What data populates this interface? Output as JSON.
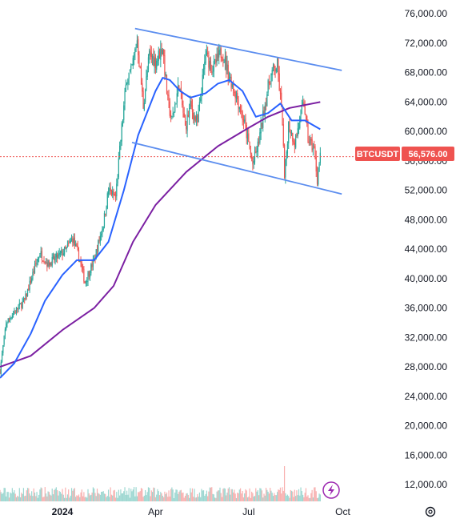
{
  "chart_data": {
    "type": "candlestick",
    "symbol": "BTCUSDT",
    "last_price": 56576,
    "last_price_label": "56,576.00",
    "y_axis": {
      "min": 9500,
      "max": 77000,
      "tick_values": [
        12000,
        16000,
        20000,
        24000,
        28000,
        32000,
        36000,
        40000,
        44000,
        48000,
        52000,
        56000,
        60000,
        64000,
        68000,
        72000,
        76000
      ],
      "tick_labels": [
        "12,000.00",
        "16,000.00",
        "20,000.00",
        "24,000.00",
        "28,000.00",
        "32,000.00",
        "36,000.00",
        "40,000.00",
        "44,000.00",
        "48,000.00",
        "52,000.00",
        "56,000.00",
        "60,000.00",
        "64,000.00",
        "68,000.00",
        "72,000.00",
        "76,000.00"
      ]
    },
    "x_axis": {
      "start": "2023-11-01",
      "end": "2024-10-10",
      "ticks": [
        {
          "date": "2024-01-01",
          "label": "2024",
          "bold": true
        },
        {
          "date": "2024-04-01",
          "label": "Apr",
          "bold": false
        },
        {
          "date": "2024-07-01",
          "label": "Jul",
          "bold": false
        },
        {
          "date": "2024-10-01",
          "label": "Oct",
          "bold": false
        }
      ]
    },
    "price_path": [
      [
        "2023-11-01",
        27500
      ],
      [
        "2023-11-07",
        34000
      ],
      [
        "2023-11-15",
        35500
      ],
      [
        "2023-11-25",
        37000
      ],
      [
        "2023-12-05",
        41500
      ],
      [
        "2023-12-10",
        43500
      ],
      [
        "2023-12-18",
        42000
      ],
      [
        "2023-12-28",
        43000
      ],
      [
        "2024-01-05",
        44000
      ],
      [
        "2024-01-11",
        45500
      ],
      [
        "2024-01-18",
        42500
      ],
      [
        "2024-01-23",
        39500
      ],
      [
        "2024-02-01",
        42500
      ],
      [
        "2024-02-10",
        47500
      ],
      [
        "2024-02-15",
        52000
      ],
      [
        "2024-02-22",
        51000
      ],
      [
        "2024-02-28",
        60500
      ],
      [
        "2024-03-04",
        67500
      ],
      [
        "2024-03-08",
        68000
      ],
      [
        "2024-03-14",
        72500
      ],
      [
        "2024-03-20",
        63500
      ],
      [
        "2024-03-26",
        70500
      ],
      [
        "2024-04-01",
        69500
      ],
      [
        "2024-04-08",
        71500
      ],
      [
        "2024-04-13",
        64000
      ],
      [
        "2024-04-17",
        61500
      ],
      [
        "2024-04-24",
        66500
      ],
      [
        "2024-04-30",
        60500
      ],
      [
        "2024-05-05",
        63500
      ],
      [
        "2024-05-12",
        61000
      ],
      [
        "2024-05-20",
        70500
      ],
      [
        "2024-05-27",
        68500
      ],
      [
        "2024-06-05",
        71000
      ],
      [
        "2024-06-12",
        67500
      ],
      [
        "2024-06-20",
        64500
      ],
      [
        "2024-06-27",
        61000
      ],
      [
        "2024-07-05",
        55500
      ],
      [
        "2024-07-10",
        58000
      ],
      [
        "2024-07-18",
        64500
      ],
      [
        "2024-07-22",
        67500
      ],
      [
        "2024-07-29",
        69000
      ],
      [
        "2024-08-03",
        61500
      ],
      [
        "2024-08-05",
        53500
      ],
      [
        "2024-08-09",
        61000
      ],
      [
        "2024-08-15",
        58500
      ],
      [
        "2024-08-24",
        64000
      ],
      [
        "2024-08-28",
        59000
      ],
      [
        "2024-09-03",
        57500
      ],
      [
        "2024-09-06",
        53500
      ],
      [
        "2024-09-09",
        56576
      ]
    ],
    "sma_fast": [
      [
        "2023-11-01",
        26500
      ],
      [
        "2023-11-15",
        28500
      ],
      [
        "2023-12-01",
        32500
      ],
      [
        "2023-12-15",
        37000
      ],
      [
        "2024-01-01",
        40500
      ],
      [
        "2024-01-15",
        42500
      ],
      [
        "2024-02-01",
        42500
      ],
      [
        "2024-02-15",
        45000
      ],
      [
        "2024-03-01",
        52000
      ],
      [
        "2024-03-15",
        59500
      ],
      [
        "2024-04-01",
        65500
      ],
      [
        "2024-04-08",
        67300
      ],
      [
        "2024-04-15",
        67000
      ],
      [
        "2024-04-25",
        65500
      ],
      [
        "2024-05-05",
        64600
      ],
      [
        "2024-05-20",
        65200
      ],
      [
        "2024-06-01",
        66500
      ],
      [
        "2024-06-12",
        67000
      ],
      [
        "2024-06-25",
        65500
      ],
      [
        "2024-07-08",
        62000
      ],
      [
        "2024-07-20",
        62500
      ],
      [
        "2024-08-01",
        63800
      ],
      [
        "2024-08-12",
        61500
      ],
      [
        "2024-08-25",
        61500
      ],
      [
        "2024-09-09",
        60300
      ]
    ],
    "sma_slow": [
      [
        "2023-11-01",
        28000
      ],
      [
        "2023-12-01",
        29500
      ],
      [
        "2024-01-01",
        33000
      ],
      [
        "2024-02-01",
        36000
      ],
      [
        "2024-02-20",
        39000
      ],
      [
        "2024-03-10",
        45000
      ],
      [
        "2024-04-01",
        50000
      ],
      [
        "2024-05-01",
        54500
      ],
      [
        "2024-06-01",
        58000
      ],
      [
        "2024-07-01",
        60500
      ],
      [
        "2024-07-20",
        62000
      ],
      [
        "2024-08-10",
        63200
      ],
      [
        "2024-09-09",
        64000
      ]
    ],
    "channel_upper": [
      [
        "2024-03-12",
        74000
      ],
      [
        "2024-09-30",
        68300
      ]
    ],
    "channel_lower": [
      [
        "2024-03-09",
        58500
      ],
      [
        "2024-09-30",
        51500
      ]
    ],
    "volume_spike_date": "2024-08-05",
    "colors": {
      "up": "#26a69a",
      "down": "#ef5350",
      "sma_fast": "#2962ff",
      "sma_slow": "#7b1fa2",
      "channel": "#5b8def",
      "price_line": "#ef5350",
      "grid": "#e0e3eb",
      "text": "#131722"
    }
  },
  "ui": {
    "symbol_tag": "BTCUSDT",
    "price_tag": "56,576.00",
    "lightning_icon": "lightning-icon",
    "settings_icon": "gear-icon"
  }
}
